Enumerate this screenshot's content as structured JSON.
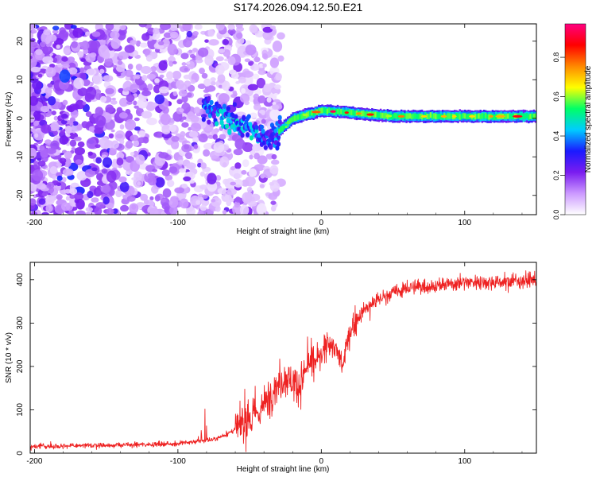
{
  "title": "S174.2026.094.12.50.E21",
  "chart_data": [
    {
      "type": "heatmap",
      "title": "S174.2026.094.12.50.E21",
      "xlabel": "Height of straight line (km)",
      "ylabel": "Frequency (Hz)",
      "xlim": [
        -203,
        150
      ],
      "ylim": [
        -25,
        24.5
      ],
      "xticks": [
        -200,
        -100,
        0,
        100
      ],
      "yticks": [
        -20,
        -10,
        0,
        10,
        20
      ],
      "colorbar": {
        "label": "Normalized spectral amplitude",
        "range": [
          0,
          0.97
        ],
        "ticks": [
          0.0,
          0.2,
          0.4,
          0.6,
          0.8
        ],
        "colormap": [
          "#ffffff",
          "#cc99ff",
          "#7a1cf0",
          "#1a1aff",
          "#00ccff",
          "#00ff66",
          "#ffff00",
          "#ff8800",
          "#ff0000",
          "#ff0080"
        ]
      },
      "description_points": [
        {
          "x": -200,
          "y_range": [
            -25,
            24
          ],
          "amp": 0.15
        },
        {
          "x": -80,
          "y": 3,
          "amp": 0.35
        },
        {
          "x": -50,
          "y": -3,
          "amp": 0.4
        },
        {
          "x": -35,
          "y": -5,
          "amp": 0.3
        },
        {
          "x": -20,
          "y": 0,
          "amp": 0.5
        },
        {
          "x": 0,
          "y": 2,
          "amp": 0.7
        },
        {
          "x": 50,
          "y": 0.5,
          "amp": 0.6
        },
        {
          "x": 100,
          "y": 0.5,
          "amp": 0.6
        },
        {
          "x": 150,
          "y": 0.5,
          "amp": 0.7
        }
      ]
    },
    {
      "type": "line",
      "xlabel": "Height of straight line (km)",
      "ylabel": "SNR (10 * v/v)",
      "xlim": [
        -203,
        150
      ],
      "ylim": [
        0,
        440
      ],
      "xticks": [
        -200,
        -100,
        0,
        100
      ],
      "yticks": [
        0,
        100,
        200,
        300,
        400
      ],
      "series": [
        {
          "name": "SNR",
          "color": "#ee2222",
          "x": [
            -200,
            -175,
            -150,
            -125,
            -100,
            -85,
            -75,
            -65,
            -55,
            -45,
            -40,
            -35,
            -30,
            -25,
            -20,
            -15,
            -10,
            -5,
            0,
            5,
            10,
            15,
            20,
            25,
            30,
            40,
            50,
            60,
            70,
            80,
            100,
            125,
            150
          ],
          "y": [
            15,
            17,
            18,
            20,
            22,
            28,
            32,
            45,
            65,
            90,
            110,
            140,
            160,
            175,
            165,
            155,
            200,
            210,
            220,
            260,
            240,
            200,
            280,
            310,
            330,
            355,
            370,
            380,
            385,
            385,
            395,
            395,
            400
          ]
        }
      ]
    }
  ]
}
